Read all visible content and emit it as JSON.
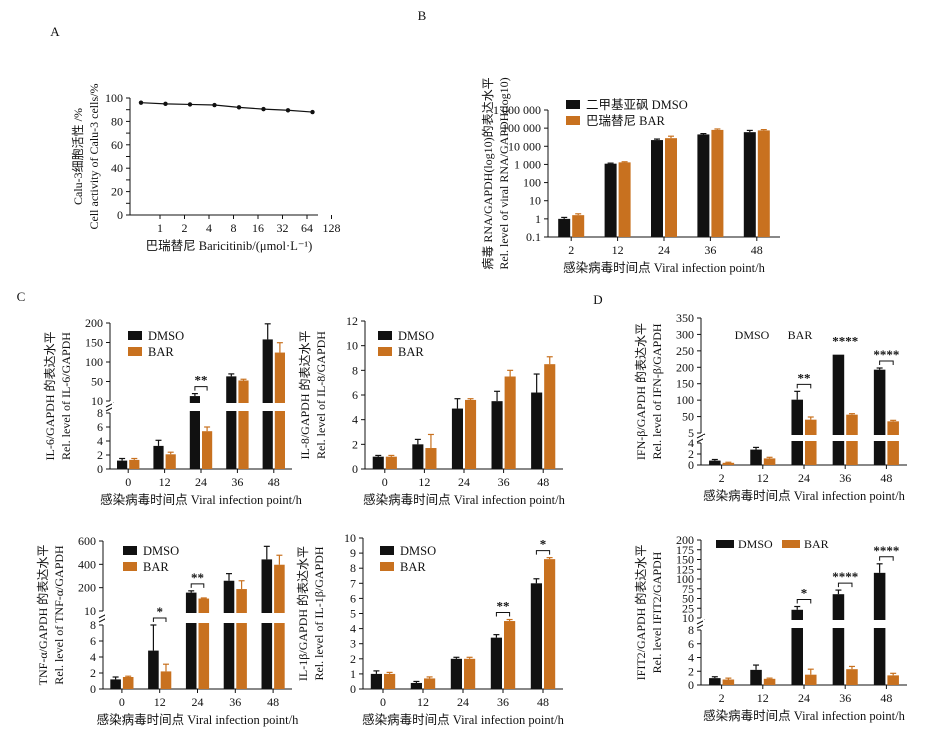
{
  "colors": {
    "dmso": "#111111",
    "bar": "#c8711f",
    "axis": "#111111"
  },
  "xlabel_common": "感染病毒时间点 Viral infection point/h",
  "legend_dmso": "DMSO",
  "legend_bar": "BAR",
  "chart_data": [
    {
      "id": "A",
      "panel_label": "A",
      "type": "line",
      "ylabel_cn": "Calu-3细胞活性 /%",
      "ylabel_en": "Cell activity of Calu-3 cells/%",
      "xlabel": "巴瑞替尼 Baricitinib/(μmol·L⁻¹)",
      "x": [
        "1",
        "2",
        "4",
        "8",
        "16",
        "32",
        "64",
        "128"
      ],
      "yticks": [
        "0",
        "10",
        "20",
        "30",
        "40",
        "50",
        "60",
        "70",
        "80",
        "90",
        "100"
      ],
      "ylim": [
        0,
        100
      ],
      "points": [
        [
          0,
          96
        ],
        [
          1,
          95
        ],
        [
          2,
          94.5
        ],
        [
          3,
          94
        ],
        [
          4,
          92
        ],
        [
          5,
          90.5
        ],
        [
          6,
          89.5
        ],
        [
          7,
          88
        ]
      ]
    },
    {
      "id": "B",
      "panel_label": "B",
      "type": "bar",
      "scale": "log",
      "ylabel_cn": "病毒 RNA/GAPDH(log10)的表达水平",
      "ylabel_en": "Rel. level of viral RNA/GAPDH(log10)",
      "legend": [
        "二甲基亚砜 DMSO",
        "巴瑞替尼 BAR"
      ],
      "categories": [
        "2",
        "12",
        "24",
        "36",
        "48"
      ],
      "yticks": [
        "0.1",
        "1",
        "10",
        "100",
        "1 000",
        "10 000",
        "100 000",
        "1 000 000"
      ],
      "series": [
        {
          "name": "二甲基亚砜 DMSO",
          "values": [
            1,
            1100,
            22000,
            45000,
            60000
          ],
          "errors": [
            0.2,
            80,
            3000,
            5000,
            15000
          ]
        },
        {
          "name": "巴瑞替尼 BAR",
          "values": [
            1.6,
            1300,
            28000,
            80000,
            75000
          ],
          "errors": [
            0.3,
            100,
            8000,
            10000,
            8000
          ]
        }
      ]
    },
    {
      "id": "IL6",
      "panel_label": "C",
      "type": "bar",
      "scale": "broken",
      "ylabel_cn": "IL-6/GAPDH 的表达水平",
      "ylabel_en": "Rel. level of IL-6/GAPDH",
      "legend": [
        "DMSO",
        "BAR"
      ],
      "categories": [
        "0",
        "12",
        "24",
        "36",
        "48"
      ],
      "yticks_low": [
        "0",
        "2",
        "4",
        "6",
        "8"
      ],
      "yticks_high": [
        "10",
        "50",
        "100",
        "150",
        "200"
      ],
      "low_max": 8,
      "high_range": [
        10,
        200
      ],
      "series": [
        {
          "name": "DMSO",
          "values": [
            1.2,
            3.3,
            22,
            70,
            160
          ],
          "errors": [
            0.3,
            0.8,
            6,
            6,
            38
          ]
        },
        {
          "name": "BAR",
          "values": [
            1.3,
            2.1,
            5.4,
            60,
            128
          ],
          "errors": [
            0.2,
            0.3,
            0.6,
            3,
            24
          ]
        }
      ],
      "sig": [
        {
          "cat": 2,
          "label": "**"
        }
      ]
    },
    {
      "id": "IL8",
      "type": "bar",
      "scale": "linear",
      "ylabel_cn": "IL-8/GAPDH 的表达水平",
      "ylabel_en": "Rel. level of IL-8/GAPDH",
      "legend": [
        "DMSO",
        "BAR"
      ],
      "categories": [
        "0",
        "12",
        "24",
        "36",
        "48"
      ],
      "yticks": [
        "0",
        "2",
        "4",
        "6",
        "8",
        "10",
        "12"
      ],
      "ylim": [
        0,
        12
      ],
      "series": [
        {
          "name": "DMSO",
          "values": [
            1.0,
            2.0,
            4.9,
            5.5,
            6.2
          ],
          "errors": [
            0.1,
            0.4,
            0.8,
            0.8,
            1.5
          ]
        },
        {
          "name": "BAR",
          "values": [
            1.0,
            1.7,
            5.6,
            7.5,
            8.5
          ],
          "errors": [
            0.1,
            1.1,
            0.1,
            0.5,
            0.6
          ]
        }
      ]
    },
    {
      "id": "TNF",
      "type": "bar",
      "scale": "broken",
      "ylabel_cn": "TNF-α/GAPDH 的表达水平",
      "ylabel_en": "Rel. level of TNF-α/GAPDH",
      "legend": [
        "DMSO",
        "BAR"
      ],
      "categories": [
        "0",
        "12",
        "24",
        "36",
        "48"
      ],
      "yticks_low": [
        "0",
        "2",
        "4",
        "6",
        "8"
      ],
      "yticks_high": [
        "10",
        "200",
        "400",
        "600"
      ],
      "low_max": 8,
      "high_range": [
        10,
        600
      ],
      "series": [
        {
          "name": "DMSO",
          "values": [
            1.2,
            4.8,
            165,
            265,
            445
          ],
          "errors": [
            0.3,
            3.2,
            15,
            60,
            110
          ]
        },
        {
          "name": "BAR",
          "values": [
            1.5,
            2.2,
            115,
            195,
            400
          ],
          "errors": [
            0.1,
            0.9,
            5,
            70,
            80
          ]
        }
      ],
      "sig": [
        {
          "cat": 1,
          "label": "*"
        },
        {
          "cat": 2,
          "label": "**"
        }
      ]
    },
    {
      "id": "IL1B",
      "type": "bar",
      "scale": "linear",
      "ylabel_cn": "IL-1β/GAPDH 的表达水平",
      "ylabel_en": "Rel. level of IL-1β/GAPDH",
      "legend": [
        "DMSO",
        "BAR"
      ],
      "categories": [
        "0",
        "12",
        "24",
        "36",
        "48"
      ],
      "yticks": [
        "0",
        "1",
        "2",
        "3",
        "4",
        "5",
        "6",
        "7",
        "8",
        "9",
        "10"
      ],
      "ylim": [
        0,
        10
      ],
      "series": [
        {
          "name": "DMSO",
          "values": [
            1.0,
            0.4,
            2.0,
            3.4,
            7.0
          ],
          "errors": [
            0.2,
            0.1,
            0.1,
            0.2,
            0.3
          ]
        },
        {
          "name": "BAR",
          "values": [
            1.0,
            0.7,
            2.0,
            4.5,
            8.6
          ],
          "errors": [
            0.1,
            0.1,
            0.1,
            0.1,
            0.1
          ]
        }
      ],
      "sig": [
        {
          "cat": 3,
          "label": "**"
        },
        {
          "cat": 4,
          "label": "*"
        }
      ]
    },
    {
      "id": "IFNB",
      "panel_label": "D",
      "type": "bar",
      "scale": "broken",
      "ylabel_cn": "IFN-β/GAPDH 的表达水平",
      "ylabel_en": "Rel. level of IFN-β/GAPDH",
      "legend": [
        "DMSO",
        "BAR"
      ],
      "legend_style": "text",
      "categories": [
        "2",
        "12",
        "24",
        "36",
        "48"
      ],
      "yticks_low": [
        "0",
        "2",
        "4"
      ],
      "yticks_high": [
        "5",
        "50",
        "100",
        "150",
        "200",
        "250",
        "300",
        "350"
      ],
      "low_max": 4,
      "high_range": [
        5,
        350
      ],
      "series": [
        {
          "name": "DMSO",
          "values": [
            0.8,
            2.8,
            105,
            240,
            195
          ],
          "errors": [
            0.2,
            0.4,
            25,
            0,
            5
          ]
        },
        {
          "name": "BAR",
          "values": [
            0.4,
            1.2,
            45,
            60,
            40
          ],
          "errors": [
            0.1,
            0.2,
            8,
            3,
            3
          ]
        }
      ],
      "sig": [
        {
          "cat": 2,
          "label": "**"
        },
        {
          "cat": 3,
          "label": "****",
          "nobracket": true
        },
        {
          "cat": 4,
          "label": "****"
        }
      ]
    },
    {
      "id": "IFIT2",
      "type": "bar",
      "scale": "broken",
      "ylabel_cn": "IFIT2/GAPDH 的表达水平",
      "ylabel_en": "Rel. level IFIT2/GAPDH",
      "legend": [
        "DMSO",
        "BAR"
      ],
      "legend_inline": true,
      "categories": [
        "2",
        "12",
        "24",
        "36",
        "48"
      ],
      "yticks_low": [
        "0",
        "2",
        "4",
        "6",
        "8"
      ],
      "yticks_high": [
        "10",
        "25",
        "50",
        "75",
        "100",
        "125",
        "150",
        "175",
        "200"
      ],
      "low_max": 8,
      "high_range": [
        10,
        200
      ],
      "series": [
        {
          "name": "DMSO",
          "values": [
            1.0,
            2.2,
            30,
            68,
            120
          ],
          "errors": [
            0.2,
            0.7,
            8,
            10,
            22
          ]
        },
        {
          "name": "BAR",
          "values": [
            0.8,
            0.9,
            1.5,
            2.3,
            1.4
          ],
          "errors": [
            0.2,
            0.1,
            0.8,
            0.4,
            0.3
          ]
        }
      ],
      "sig": [
        {
          "cat": 2,
          "label": "*"
        },
        {
          "cat": 3,
          "label": "****"
        },
        {
          "cat": 4,
          "label": "****"
        }
      ]
    }
  ]
}
